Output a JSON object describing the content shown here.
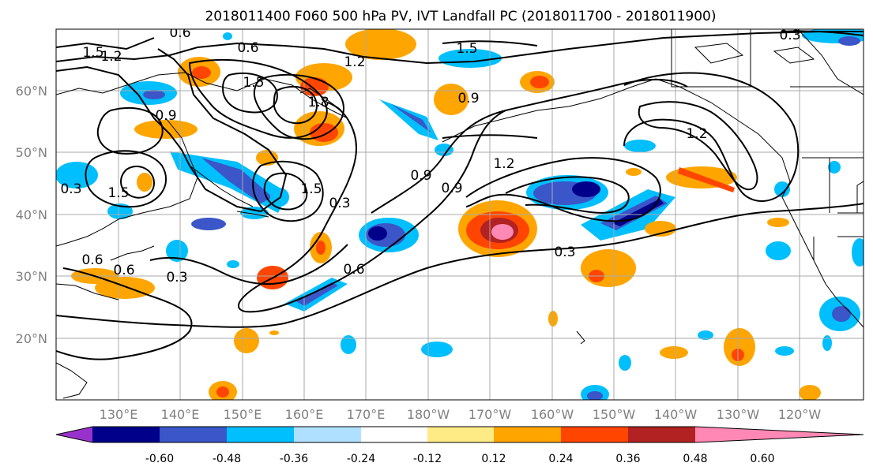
{
  "title": "2018011400 F060 500 hPa PV, IVT Landfall PC (2018011700 - 2018011900)",
  "lon_ticks": [
    "130°E",
    "140°E",
    "150°E",
    "160°E",
    "170°E",
    "180°W",
    "170°W",
    "160°W",
    "150°W",
    "140°W",
    "130°W",
    "120°W"
  ],
  "lat_ticks": [
    "60°N",
    "50°N",
    "40°N",
    "30°N",
    "20°N"
  ],
  "contour_labels": [
    "1.5",
    "1.2",
    "0.6",
    "1.2",
    "1.5",
    "0.9",
    "1.5",
    "1.8",
    "0.9",
    "0.6",
    "0.3",
    "1.2",
    "0.9",
    "0.9",
    "1.5",
    "0.3",
    "0.6",
    "0.3",
    "0.6",
    "0.6",
    "0.3",
    "1.2",
    "0.3",
    "1.5"
  ],
  "colorbar": {
    "tick_labels": [
      "-0.60",
      "-0.48",
      "-0.36",
      "-0.24",
      "-0.12",
      "0.12",
      "0.24",
      "0.36",
      "0.48",
      "0.60"
    ],
    "colors": [
      "#9932cc",
      "#00008b",
      "#3a56c8",
      "#00bfff",
      "#b0e0ff",
      "#ffffff",
      "#ffeb85",
      "#ffa500",
      "#ff4500",
      "#b22222",
      "#ff89b4"
    ]
  },
  "palette": {
    "land_line": "#000000",
    "contour": "#000000",
    "grid": "#aaaaaa"
  }
}
